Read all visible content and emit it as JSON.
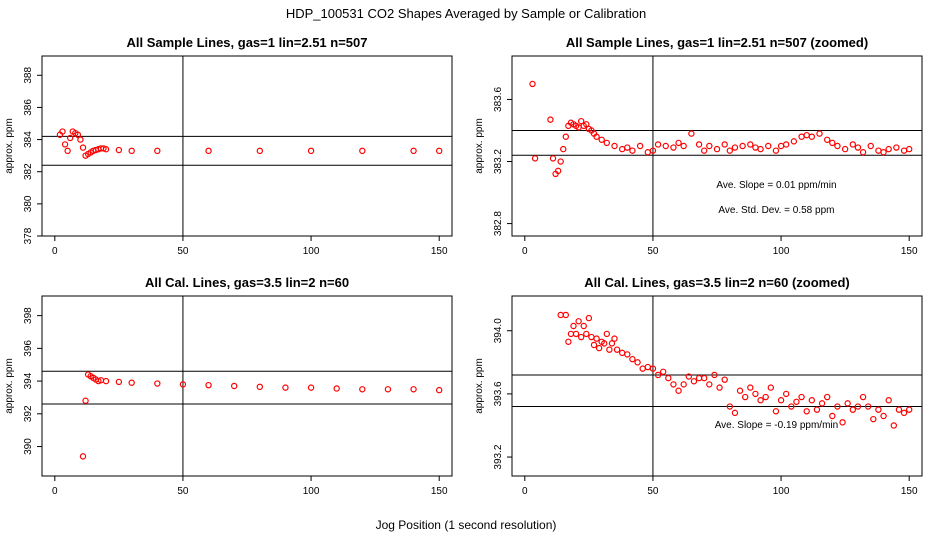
{
  "figure": {
    "title": "HDP_100531  CO2 Shapes Averaged by Sample or Calibration",
    "xlabel": "Jog Position (1 second resolution)",
    "point_color": "#ff0000"
  },
  "chart_data": [
    {
      "type": "scatter",
      "title": "All Sample Lines, gas=1 lin=2.51 n=507",
      "ylabel": "approx. ppm",
      "xlim": [
        -5,
        155
      ],
      "ylim": [
        378,
        389.2
      ],
      "xticks": [
        "0",
        "50",
        "100",
        "150"
      ],
      "yticks": [
        "378",
        "380",
        "382",
        "384",
        "386",
        "388"
      ],
      "hlines": [
        384.2,
        382.4
      ],
      "vline": 50,
      "annotations": [],
      "series": [
        {
          "x": [
            2,
            3,
            4,
            5,
            6,
            7,
            8,
            9,
            10,
            11,
            12,
            13,
            14,
            15,
            16,
            17,
            18,
            19,
            20,
            25,
            30,
            40,
            60,
            80,
            100,
            120,
            140,
            150
          ],
          "y": [
            384.3,
            384.5,
            383.7,
            383.3,
            384.1,
            384.5,
            384.4,
            384.3,
            384.0,
            383.5,
            383.0,
            383.1,
            383.2,
            383.3,
            383.35,
            383.4,
            383.45,
            383.45,
            383.4,
            383.35,
            383.3,
            383.3,
            383.3,
            383.3,
            383.3,
            383.3,
            383.3,
            383.3
          ]
        }
      ]
    },
    {
      "type": "scatter",
      "title": "All Sample Lines, gas=1 lin=2.51 n=507 (zoomed)",
      "ylabel": "approx. ppm",
      "xlim": [
        -5,
        155
      ],
      "ylim": [
        382.72,
        383.88
      ],
      "xticks": [
        "0",
        "50",
        "100",
        "150"
      ],
      "yticks": [
        "382.8",
        "383.2",
        "383.6"
      ],
      "hlines": [
        383.4,
        383.24
      ],
      "vline": 50,
      "annotations": [
        "Ave. Slope =  0.01  ppm/min",
        "Ave. Std. Dev. =  0.58  ppm"
      ],
      "series": [
        {
          "x": [
            3,
            4,
            10,
            11,
            12,
            13,
            14,
            15,
            16,
            17,
            18,
            19,
            20,
            21,
            22,
            23,
            24,
            25,
            26,
            27,
            28,
            30,
            32,
            35,
            38,
            40,
            42,
            45,
            48,
            50,
            52,
            55,
            58,
            60,
            62,
            65,
            68,
            70,
            72,
            75,
            78,
            80,
            82,
            85,
            88,
            90,
            92,
            95,
            98,
            100,
            102,
            105,
            108,
            110,
            112,
            115,
            118,
            120,
            122,
            125,
            128,
            130,
            132,
            135,
            138,
            140,
            142,
            145,
            148,
            150
          ],
          "y": [
            383.7,
            383.22,
            383.47,
            383.22,
            383.12,
            383.14,
            383.2,
            383.28,
            383.36,
            383.43,
            383.45,
            383.44,
            383.43,
            383.42,
            383.46,
            383.43,
            383.44,
            383.41,
            383.4,
            383.38,
            383.36,
            383.34,
            383.32,
            383.3,
            383.28,
            383.29,
            383.27,
            383.3,
            383.26,
            383.27,
            383.31,
            383.3,
            383.29,
            383.32,
            383.3,
            383.38,
            383.31,
            383.27,
            383.3,
            383.28,
            383.31,
            383.27,
            383.29,
            383.3,
            383.31,
            383.29,
            383.28,
            383.3,
            383.27,
            383.3,
            383.31,
            383.33,
            383.36,
            383.37,
            383.36,
            383.38,
            383.34,
            383.32,
            383.3,
            383.28,
            383.31,
            383.29,
            383.26,
            383.3,
            383.27,
            383.26,
            383.28,
            383.29,
            383.27,
            383.28
          ]
        }
      ]
    },
    {
      "type": "scatter",
      "title": "All Cal. Lines, gas=3.5 lin=2 n=60",
      "ylabel": "approx. ppm",
      "xlim": [
        -5,
        155
      ],
      "ylim": [
        388.2,
        399.2
      ],
      "xticks": [
        "0",
        "50",
        "100",
        "150"
      ],
      "yticks": [
        "390",
        "392",
        "394",
        "396",
        "398"
      ],
      "hlines": [
        394.6,
        392.6
      ],
      "vline": 50,
      "annotations": [],
      "series": [
        {
          "x": [
            11,
            12,
            13,
            14,
            15,
            16,
            17,
            18,
            20,
            25,
            30,
            40,
            50,
            60,
            70,
            80,
            90,
            100,
            110,
            120,
            130,
            140,
            150
          ],
          "y": [
            389.4,
            392.8,
            394.4,
            394.3,
            394.2,
            394.1,
            394.0,
            394.05,
            394.0,
            393.95,
            393.9,
            393.85,
            393.8,
            393.75,
            393.7,
            393.65,
            393.6,
            393.6,
            393.55,
            393.5,
            393.5,
            393.5,
            393.45
          ]
        }
      ]
    },
    {
      "type": "scatter",
      "title": "All Cal. Lines, gas=3.5 lin=2 n=60 (zoomed)",
      "ylabel": "approx. ppm",
      "xlim": [
        -5,
        155
      ],
      "ylim": [
        393.08,
        394.22
      ],
      "xticks": [
        "0",
        "50",
        "100",
        "150"
      ],
      "yticks": [
        "393.2",
        "393.6",
        "394.0"
      ],
      "hlines": [
        393.72,
        393.52
      ],
      "vline": 50,
      "annotations": [
        "Ave. Slope =  -0.19  ppm/min"
      ],
      "series": [
        {
          "x": [
            14,
            16,
            17,
            18,
            19,
            20,
            21,
            22,
            23,
            24,
            25,
            26,
            27,
            28,
            29,
            30,
            31,
            32,
            33,
            34,
            35,
            36,
            38,
            40,
            42,
            44,
            46,
            48,
            50,
            52,
            54,
            56,
            58,
            60,
            62,
            64,
            66,
            68,
            70,
            72,
            74,
            76,
            78,
            80,
            82,
            84,
            86,
            88,
            90,
            92,
            94,
            96,
            98,
            100,
            102,
            104,
            106,
            108,
            110,
            112,
            114,
            116,
            118,
            120,
            122,
            124,
            126,
            128,
            130,
            132,
            134,
            136,
            138,
            140,
            142,
            144,
            146,
            148,
            150
          ],
          "y": [
            394.1,
            394.1,
            393.93,
            393.98,
            394.03,
            393.98,
            394.06,
            393.96,
            394.03,
            393.98,
            394.08,
            393.96,
            393.91,
            393.95,
            393.89,
            393.93,
            393.92,
            393.98,
            393.88,
            393.92,
            393.95,
            393.88,
            393.86,
            393.85,
            393.82,
            393.8,
            393.76,
            393.77,
            393.76,
            393.72,
            393.74,
            393.7,
            393.66,
            393.62,
            393.66,
            393.71,
            393.68,
            393.7,
            393.7,
            393.66,
            393.72,
            393.64,
            393.69,
            393.52,
            393.48,
            393.62,
            393.58,
            393.64,
            393.6,
            393.56,
            393.58,
            393.64,
            393.49,
            393.56,
            393.6,
            393.52,
            393.55,
            393.58,
            393.49,
            393.56,
            393.5,
            393.54,
            393.58,
            393.46,
            393.52,
            393.42,
            393.54,
            393.5,
            393.52,
            393.58,
            393.52,
            393.44,
            393.5,
            393.46,
            393.56,
            393.4,
            393.5,
            393.48,
            393.5
          ]
        }
      ]
    }
  ]
}
